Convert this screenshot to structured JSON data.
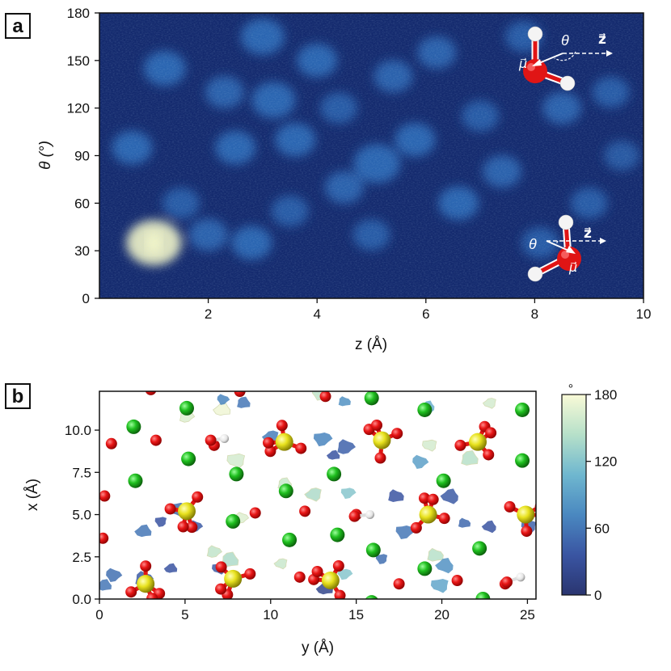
{
  "panels": {
    "a": "a",
    "b": "b"
  },
  "colors": {
    "heatmap_low": "#142a6e",
    "heatmap_mid": "#2e6bb8",
    "heatmap_high": "#f2f5c8",
    "oxygen": "#e01515",
    "hydrogen": "#f2f2f2",
    "sulfur": "#e6e01e",
    "chlorine": "#1fbf1f"
  },
  "chart_data": [
    {
      "type": "heatmap",
      "panel": "a",
      "xlabel": "z (Å)",
      "ylabel": "θ (°)",
      "xlim": [
        0,
        10
      ],
      "ylim": [
        0,
        180
      ],
      "xticks": [
        2,
        4,
        6,
        8,
        10
      ],
      "yticks": [
        0,
        30,
        60,
        90,
        120,
        150,
        180
      ],
      "colormap": "dark blue to pale yellow",
      "hotspots": [
        {
          "z": 1.0,
          "theta": 35,
          "intensity": 1.0
        },
        {
          "z": 0.6,
          "theta": 95,
          "intensity": 0.55
        },
        {
          "z": 1.2,
          "theta": 145,
          "intensity": 0.6
        },
        {
          "z": 1.5,
          "theta": 60,
          "intensity": 0.45
        },
        {
          "z": 2.0,
          "theta": 40,
          "intensity": 0.5
        },
        {
          "z": 2.8,
          "theta": 35,
          "intensity": 0.55
        },
        {
          "z": 2.5,
          "theta": 95,
          "intensity": 0.55
        },
        {
          "z": 2.3,
          "theta": 130,
          "intensity": 0.5
        },
        {
          "z": 3.0,
          "theta": 165,
          "intensity": 0.65
        },
        {
          "z": 3.2,
          "theta": 125,
          "intensity": 0.65
        },
        {
          "z": 3.6,
          "theta": 100,
          "intensity": 0.55
        },
        {
          "z": 3.5,
          "theta": 55,
          "intensity": 0.45
        },
        {
          "z": 4.0,
          "theta": 150,
          "intensity": 0.55
        },
        {
          "z": 4.4,
          "theta": 120,
          "intensity": 0.45
        },
        {
          "z": 4.5,
          "theta": 70,
          "intensity": 0.5
        },
        {
          "z": 5.1,
          "theta": 85,
          "intensity": 0.75
        },
        {
          "z": 5.4,
          "theta": 140,
          "intensity": 0.5
        },
        {
          "z": 5.0,
          "theta": 40,
          "intensity": 0.45
        },
        {
          "z": 5.8,
          "theta": 100,
          "intensity": 0.55
        },
        {
          "z": 6.2,
          "theta": 155,
          "intensity": 0.5
        },
        {
          "z": 6.6,
          "theta": 60,
          "intensity": 0.55
        },
        {
          "z": 7.0,
          "theta": 115,
          "intensity": 0.45
        },
        {
          "z": 7.4,
          "theta": 80,
          "intensity": 0.5
        },
        {
          "z": 7.8,
          "theta": 165,
          "intensity": 0.45
        },
        {
          "z": 8.1,
          "theta": 35,
          "intensity": 0.45
        },
        {
          "z": 8.5,
          "theta": 120,
          "intensity": 0.5
        },
        {
          "z": 9.0,
          "theta": 60,
          "intensity": 0.45
        },
        {
          "z": 9.4,
          "theta": 130,
          "intensity": 0.45
        },
        {
          "z": 9.6,
          "theta": 90,
          "intensity": 0.4
        }
      ],
      "insets": [
        {
          "name": "water-molecule-top",
          "theta_label": "θ",
          "mu_label": "μ⃗",
          "z_label": "z⃗"
        },
        {
          "name": "water-molecule-bottom",
          "theta_label": "θ",
          "mu_label": "μ⃗",
          "z_label": "z⃗"
        }
      ]
    },
    {
      "type": "scatter",
      "panel": "b",
      "xlabel": "y (Å)",
      "ylabel": "x (Å)",
      "xlim": [
        0,
        25.5
      ],
      "ylim": [
        0,
        12.3
      ],
      "xticks": [
        0,
        5,
        10,
        15,
        20,
        25
      ],
      "xtick_labels": [
        "0",
        "5",
        "10",
        "15",
        "20",
        "25"
      ],
      "yticks": [
        0,
        2.5,
        5,
        7.5,
        10
      ],
      "ytick_labels": [
        "0.0",
        "2.5",
        "5.0",
        "7.5",
        "10.0"
      ],
      "colorbar": {
        "title": "°",
        "min": 0,
        "max": 180,
        "ticks": [
          0,
          60,
          120,
          180
        ]
      },
      "sulfate_groups": [
        {
          "y": 2.7,
          "x": 0.9
        },
        {
          "y": 5.1,
          "x": 5.2
        },
        {
          "y": 7.8,
          "x": 1.2
        },
        {
          "y": 10.8,
          "x": 9.3
        },
        {
          "y": 13.5,
          "x": 1.1
        },
        {
          "y": 16.5,
          "x": 9.4
        },
        {
          "y": 19.2,
          "x": 5.0
        },
        {
          "y": 22.1,
          "x": 9.3
        },
        {
          "y": 24.9,
          "x": 5.0
        }
      ],
      "chlorine": [
        {
          "y": 5.1,
          "x": 11.3
        },
        {
          "y": 2.0,
          "x": 10.2
        },
        {
          "y": 5.2,
          "x": 8.3
        },
        {
          "y": 8.0,
          "x": 7.4
        },
        {
          "y": 2.1,
          "x": 7.0
        },
        {
          "y": 7.8,
          "x": 4.6
        },
        {
          "y": 10.9,
          "x": 6.4
        },
        {
          "y": 11.1,
          "x": 3.5
        },
        {
          "y": 13.9,
          "x": 3.8
        },
        {
          "y": 13.7,
          "x": 7.4
        },
        {
          "y": 16.0,
          "x": 2.9
        },
        {
          "y": 15.9,
          "x": 11.9
        },
        {
          "y": 19.0,
          "x": 1.8
        },
        {
          "y": 19.0,
          "x": 11.2
        },
        {
          "y": 22.2,
          "x": 3.0
        },
        {
          "y": 24.7,
          "x": 8.2
        },
        {
          "y": 24.7,
          "x": 11.2
        },
        {
          "y": 22.4,
          "x": 0.0
        },
        {
          "y": 15.9,
          "x": -0.2
        },
        {
          "y": 20.1,
          "x": 7.0
        }
      ],
      "oxygen": [
        {
          "y": 0.7,
          "x": 9.2
        },
        {
          "y": 3.3,
          "x": 9.4
        },
        {
          "y": 6.7,
          "x": 9.1
        },
        {
          "y": 0.3,
          "x": 6.1
        },
        {
          "y": 0.2,
          "x": 3.6
        },
        {
          "y": 9.1,
          "x": 5.1
        },
        {
          "y": 12.0,
          "x": 5.2
        },
        {
          "y": 15.0,
          "x": 5.0
        },
        {
          "y": 3.0,
          "x": 12.4
        },
        {
          "y": 8.2,
          "x": 12.3
        },
        {
          "y": 13.2,
          "x": 12.0
        },
        {
          "y": 17.5,
          "x": 0.9
        },
        {
          "y": 23.7,
          "x": 0.9
        },
        {
          "y": 20.9,
          "x": 1.1
        },
        {
          "y": 11.7,
          "x": 1.3
        }
      ],
      "hydroxyl": [
        {
          "y": 6.5,
          "x": 9.4,
          "hy": 7.3,
          "hx": 9.5
        },
        {
          "y": 14.9,
          "x": 4.9,
          "hy": 15.8,
          "hx": 5.0
        },
        {
          "y": 23.8,
          "x": 1.0,
          "hy": 24.6,
          "hx": 1.3
        }
      ],
      "density_patches": [
        {
          "y": 2.0,
          "x": 10.3,
          "angle": 170
        },
        {
          "y": 5.1,
          "x": 10.8,
          "angle": 165
        },
        {
          "y": 7.2,
          "x": 11.2,
          "angle": 175
        },
        {
          "y": 8.0,
          "x": 8.2,
          "angle": 160
        },
        {
          "y": 7.2,
          "x": 11.8,
          "angle": 70
        },
        {
          "y": 8.4,
          "x": 11.6,
          "angle": 60
        },
        {
          "y": 10.0,
          "x": 9.6,
          "angle": 65
        },
        {
          "y": 13.0,
          "x": 9.5,
          "angle": 70
        },
        {
          "y": 14.3,
          "x": 11.7,
          "angle": 80
        },
        {
          "y": 19.2,
          "x": 11.4,
          "angle": 100
        },
        {
          "y": 12.9,
          "x": 12.2,
          "angle": 150
        },
        {
          "y": 14.4,
          "x": 9.0,
          "angle": 45
        },
        {
          "y": 13.7,
          "x": 8.5,
          "angle": 35
        },
        {
          "y": 19.3,
          "x": 9.1,
          "angle": 160
        },
        {
          "y": 18.7,
          "x": 8.1,
          "angle": 90
        },
        {
          "y": 21.6,
          "x": 8.3,
          "angle": 145
        },
        {
          "y": 22.8,
          "x": 11.6,
          "angle": 160
        },
        {
          "y": 14.5,
          "x": 6.3,
          "angle": 120
        },
        {
          "y": 17.3,
          "x": 6.1,
          "angle": 35
        },
        {
          "y": 20.5,
          "x": 6.1,
          "angle": 40
        },
        {
          "y": 3.6,
          "x": 4.6,
          "angle": 35
        },
        {
          "y": 5.6,
          "x": 4.3,
          "angle": 40
        },
        {
          "y": 2.6,
          "x": 4.0,
          "angle": 60
        },
        {
          "y": 4.6,
          "x": 5.3,
          "angle": 50
        },
        {
          "y": 8.3,
          "x": 4.8,
          "angle": 165
        },
        {
          "y": 10.8,
          "x": 6.8,
          "angle": 155
        },
        {
          "y": 12.5,
          "x": 6.2,
          "angle": 140
        },
        {
          "y": 17.8,
          "x": 4.0,
          "angle": 60
        },
        {
          "y": 21.3,
          "x": 4.5,
          "angle": 50
        },
        {
          "y": 22.8,
          "x": 4.3,
          "angle": 35
        },
        {
          "y": 25.1,
          "x": 4.3,
          "angle": 45
        },
        {
          "y": 2.6,
          "x": 1.2,
          "angle": 40
        },
        {
          "y": 4.2,
          "x": 1.8,
          "angle": 35
        },
        {
          "y": 7.0,
          "x": 1.8,
          "angle": 40
        },
        {
          "y": 0.8,
          "x": 1.4,
          "angle": 55
        },
        {
          "y": 7.6,
          "x": 2.3,
          "angle": 140
        },
        {
          "y": 10.6,
          "x": 2.1,
          "angle": 155
        },
        {
          "y": 14.3,
          "x": 1.5,
          "angle": 120
        },
        {
          "y": 19.6,
          "x": 2.6,
          "angle": 145
        },
        {
          "y": 20.2,
          "x": 2.0,
          "angle": 80
        },
        {
          "y": 16.5,
          "x": 2.4,
          "angle": 55
        },
        {
          "y": 6.7,
          "x": 2.8,
          "angle": 150
        },
        {
          "y": 13.2,
          "x": 0.6,
          "angle": 20
        },
        {
          "y": 19.9,
          "x": 0.8,
          "angle": 95
        },
        {
          "y": 22.2,
          "x": 2.9,
          "angle": 50
        },
        {
          "y": 0.3,
          "x": 0.8,
          "angle": 60
        }
      ]
    }
  ]
}
